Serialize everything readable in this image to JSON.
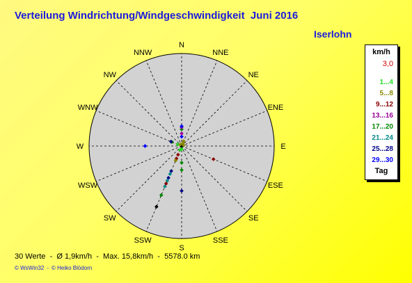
{
  "title": "Verteilung Windrichtung/Windgeschwindigkeit  Juni 2016",
  "station": "Iserlohn",
  "legend": {
    "unit": "km/h",
    "scale_value": "3,0",
    "classes": [
      {
        "label": "1...4",
        "color": "#22dd22"
      },
      {
        "label": "5...8",
        "color": "#888800"
      },
      {
        "label": "9...12",
        "color": "#8b0000"
      },
      {
        "label": "13...16",
        "color": "#990099"
      },
      {
        "label": "17...20",
        "color": "#008800"
      },
      {
        "label": "21...24",
        "color": "#008888"
      },
      {
        "label": "25...28",
        "color": "#000088"
      },
      {
        "label": "29...30",
        "color": "#0000ff"
      }
    ],
    "day_label": "Tag"
  },
  "stats": {
    "count": "30 Werte",
    "avg": "Ø 1,9km/h",
    "max": "Max. 15,8km/h",
    "distance": "5578.0 km",
    "separator": "-"
  },
  "credits": {
    "software": "© WsWin32",
    "separator": "-",
    "author": "© Heiko Blödorn"
  },
  "chart_data": {
    "type": "scatter",
    "subtype": "polar-wind-rose",
    "title": "Verteilung Windrichtung/Windgeschwindigkeit  Juni 2016",
    "direction_labels": [
      "N",
      "NNE",
      "NE",
      "ENE",
      "E",
      "ESE",
      "SE",
      "SSE",
      "S",
      "SSW",
      "SW",
      "WSW",
      "W",
      "WNW",
      "NW",
      "NNW"
    ],
    "radial_unit": "km/h",
    "radial_scale": 3.0,
    "points": [
      {
        "dir_deg": 0,
        "r": 0.9,
        "cls": 7
      },
      {
        "dir_deg": 0,
        "r": 1.2,
        "cls": 3
      },
      {
        "dir_deg": 0,
        "r": 1.6,
        "cls": 4
      },
      {
        "dir_deg": 0,
        "r": 1.8,
        "cls": 3
      },
      {
        "dir_deg": 0,
        "r": 1.9,
        "cls": 7
      },
      {
        "dir_deg": 22.5,
        "r": 0.3,
        "cls": 1
      },
      {
        "dir_deg": 22.5,
        "r": 0.5,
        "cls": 1
      },
      {
        "dir_deg": 67.5,
        "r": 0.2,
        "cls": 1
      },
      {
        "dir_deg": 112.5,
        "r": 3.3,
        "cls": 2
      },
      {
        "dir_deg": 180,
        "r": 0.3,
        "cls": 0
      },
      {
        "dir_deg": 180,
        "r": 1.6,
        "cls": 4
      },
      {
        "dir_deg": 180,
        "r": 2.3,
        "cls": 4
      },
      {
        "dir_deg": 180,
        "r": 4.3,
        "cls": 6
      },
      {
        "dir_deg": 202.5,
        "r": 0.4,
        "cls": 0
      },
      {
        "dir_deg": 202.5,
        "r": 0.9,
        "cls": 2
      },
      {
        "dir_deg": 202.5,
        "r": 1.3,
        "cls": 2
      },
      {
        "dir_deg": 202.5,
        "r": 1.5,
        "cls": 1
      },
      {
        "dir_deg": 202.5,
        "r": 2.6,
        "cls": 6
      },
      {
        "dir_deg": 202.5,
        "r": 2.9,
        "cls": 5
      },
      {
        "dir_deg": 202.5,
        "r": 3.3,
        "cls": 6
      },
      {
        "dir_deg": 202.5,
        "r": 3.6,
        "cls": 5
      },
      {
        "dir_deg": 202.5,
        "r": 3.9,
        "cls": 2
      },
      {
        "dir_deg": 202.5,
        "r": 4.2,
        "cls": 5
      },
      {
        "dir_deg": 202.5,
        "r": 5.1,
        "cls": 4
      },
      {
        "dir_deg": 202.5,
        "r": 6.3,
        "cls": 8
      },
      {
        "dir_deg": 270,
        "r": 3.5,
        "cls": 7
      },
      {
        "dir_deg": 292.5,
        "r": 0.4,
        "cls": 0
      },
      {
        "dir_deg": 292.5,
        "r": 1.0,
        "cls": 4
      },
      {
        "dir_deg": 292.5,
        "r": 1.1,
        "cls": 6
      },
      {
        "dir_deg": 315,
        "r": 0.2,
        "cls": 1
      }
    ]
  }
}
